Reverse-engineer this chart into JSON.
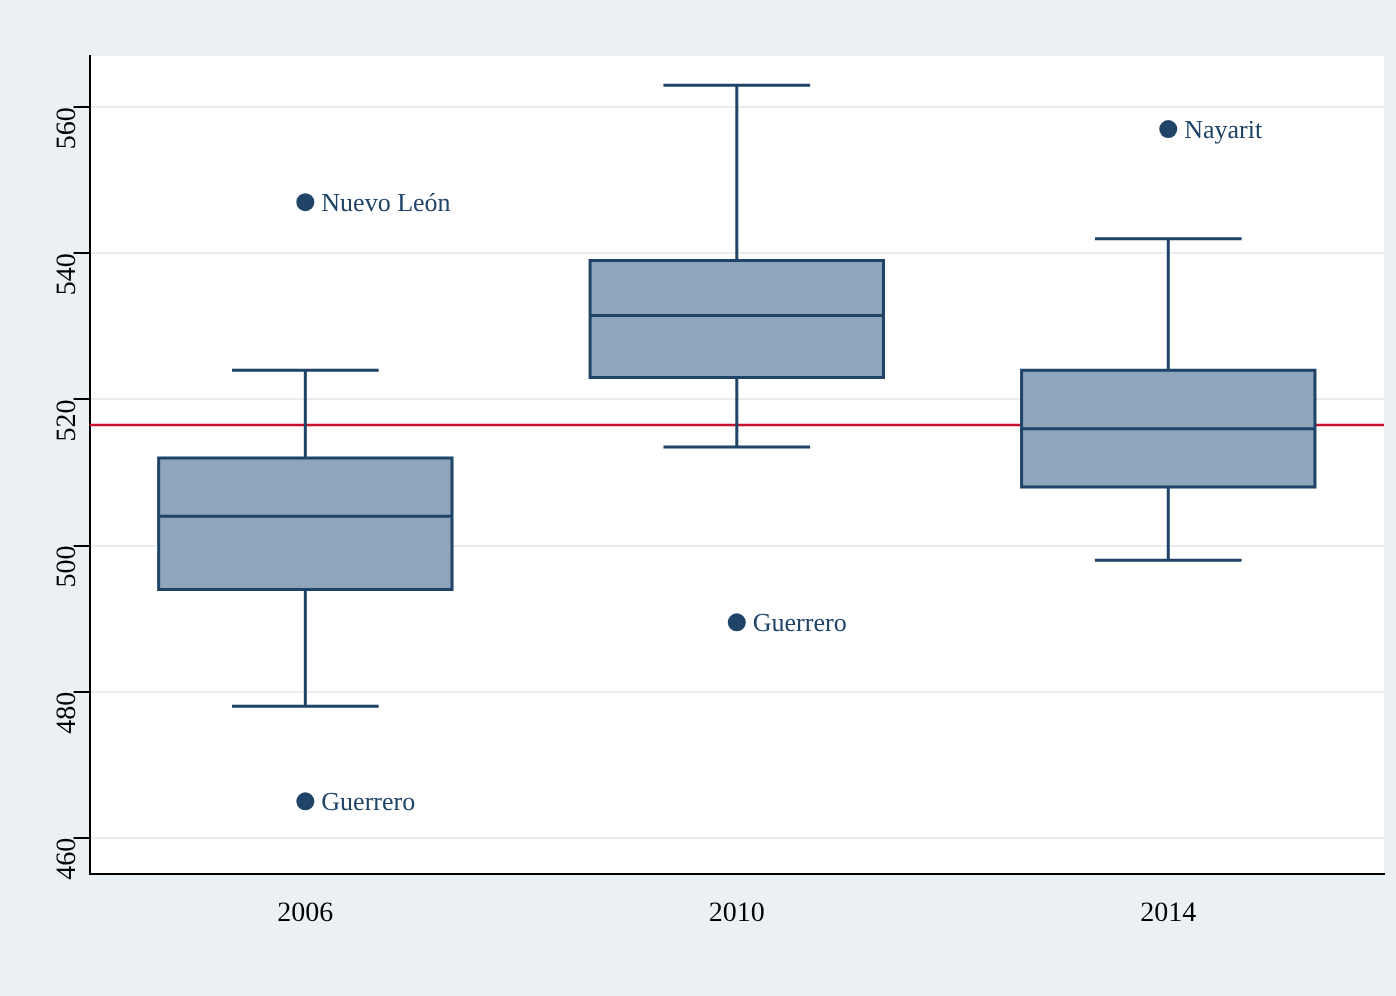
{
  "chart_data": {
    "type": "box",
    "categories": [
      "2006",
      "2010",
      "2014"
    ],
    "boxes": [
      {
        "low": 478,
        "q1": 494,
        "median": 504,
        "q3": 512,
        "high": 524,
        "outliers": [
          547,
          465
        ]
      },
      {
        "low": 513.5,
        "q1": 523,
        "median": 531.5,
        "q3": 539,
        "high": 563,
        "outliers": [
          489.5
        ]
      },
      {
        "low": 498,
        "q1": 508,
        "median": 516,
        "q3": 524,
        "high": 542,
        "outliers": [
          557
        ]
      }
    ],
    "color": "#8ea5bb",
    "ylim": [
      455,
      567
    ],
    "yticks": [
      460,
      480,
      500,
      520,
      540,
      560
    ],
    "grid": "y",
    "ref_lines": [
      {
        "axis": "y",
        "value": 516.5,
        "color": "#c8102e"
      }
    ],
    "annotations": [
      "Nuevo León",
      "Guerrero",
      "Guerrero",
      "Nayarit"
    ]
  }
}
